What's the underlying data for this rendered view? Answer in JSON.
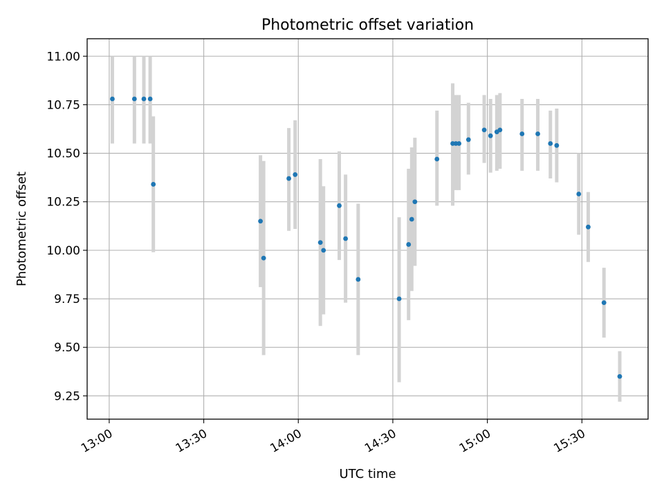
{
  "chart_data": {
    "type": "scatter",
    "title": "Photometric offset variation",
    "xlabel": "UTC time",
    "ylabel": "Photometric offset",
    "x_ticks": [
      "13:00",
      "13:30",
      "14:00",
      "14:30",
      "15:00",
      "15:30"
    ],
    "y_ticks": [
      "9.25",
      "9.50",
      "9.75",
      "10.00",
      "10.25",
      "10.50",
      "10.75",
      "11.00"
    ],
    "xlim": [
      "12:53",
      "15:51"
    ],
    "ylim": [
      9.13,
      11.09
    ],
    "grid": true,
    "colors": {
      "marker": "#1f77b4",
      "errorbar": "#d3d3d3",
      "grid": "#b0b0b0"
    },
    "series": [
      {
        "points": [
          {
            "t": "13:01",
            "y": 10.78,
            "lo": 10.55,
            "hi": 11.0
          },
          {
            "t": "13:08",
            "y": 10.78,
            "lo": 10.55,
            "hi": 11.0
          },
          {
            "t": "13:11",
            "y": 10.78,
            "lo": 10.55,
            "hi": 11.0
          },
          {
            "t": "13:13",
            "y": 10.78,
            "lo": 10.55,
            "hi": 11.0
          },
          {
            "t": "13:14",
            "y": 10.34,
            "lo": 9.99,
            "hi": 10.69
          },
          {
            "t": "13:48",
            "y": 10.15,
            "lo": 9.81,
            "hi": 10.49
          },
          {
            "t": "13:49",
            "y": 9.96,
            "lo": 9.46,
            "hi": 10.46
          },
          {
            "t": "13:57",
            "y": 10.37,
            "lo": 10.1,
            "hi": 10.63
          },
          {
            "t": "13:59",
            "y": 10.39,
            "lo": 10.11,
            "hi": 10.67
          },
          {
            "t": "14:07",
            "y": 10.04,
            "lo": 9.61,
            "hi": 10.47
          },
          {
            "t": "14:08",
            "y": 10.0,
            "lo": 9.67,
            "hi": 10.33
          },
          {
            "t": "14:13",
            "y": 10.23,
            "lo": 9.95,
            "hi": 10.51
          },
          {
            "t": "14:15",
            "y": 10.06,
            "lo": 9.73,
            "hi": 10.39
          },
          {
            "t": "14:19",
            "y": 9.85,
            "lo": 9.46,
            "hi": 10.24
          },
          {
            "t": "14:32",
            "y": 9.75,
            "lo": 9.32,
            "hi": 10.17
          },
          {
            "t": "14:35",
            "y": 10.03,
            "lo": 9.64,
            "hi": 10.42
          },
          {
            "t": "14:36",
            "y": 10.16,
            "lo": 9.79,
            "hi": 10.53
          },
          {
            "t": "14:37",
            "y": 10.25,
            "lo": 9.92,
            "hi": 10.58
          },
          {
            "t": "14:44",
            "y": 10.47,
            "lo": 10.23,
            "hi": 10.72
          },
          {
            "t": "14:49",
            "y": 10.55,
            "lo": 10.23,
            "hi": 10.86
          },
          {
            "t": "14:50",
            "y": 10.55,
            "lo": 10.31,
            "hi": 10.8
          },
          {
            "t": "14:51",
            "y": 10.55,
            "lo": 10.31,
            "hi": 10.8
          },
          {
            "t": "14:54",
            "y": 10.57,
            "lo": 10.39,
            "hi": 10.76
          },
          {
            "t": "14:59",
            "y": 10.62,
            "lo": 10.45,
            "hi": 10.8
          },
          {
            "t": "15:01",
            "y": 10.59,
            "lo": 10.4,
            "hi": 10.78
          },
          {
            "t": "15:03",
            "y": 10.61,
            "lo": 10.41,
            "hi": 10.8
          },
          {
            "t": "15:04",
            "y": 10.62,
            "lo": 10.42,
            "hi": 10.81
          },
          {
            "t": "15:11",
            "y": 10.6,
            "lo": 10.41,
            "hi": 10.78
          },
          {
            "t": "15:16",
            "y": 10.6,
            "lo": 10.41,
            "hi": 10.78
          },
          {
            "t": "15:20",
            "y": 10.55,
            "lo": 10.37,
            "hi": 10.72
          },
          {
            "t": "15:22",
            "y": 10.54,
            "lo": 10.35,
            "hi": 10.73
          },
          {
            "t": "15:29",
            "y": 10.29,
            "lo": 10.08,
            "hi": 10.5
          },
          {
            "t": "15:32",
            "y": 10.12,
            "lo": 9.94,
            "hi": 10.3
          },
          {
            "t": "15:37",
            "y": 9.73,
            "lo": 9.55,
            "hi": 9.91
          },
          {
            "t": "15:42",
            "y": 9.35,
            "lo": 9.22,
            "hi": 9.48
          }
        ]
      }
    ]
  }
}
